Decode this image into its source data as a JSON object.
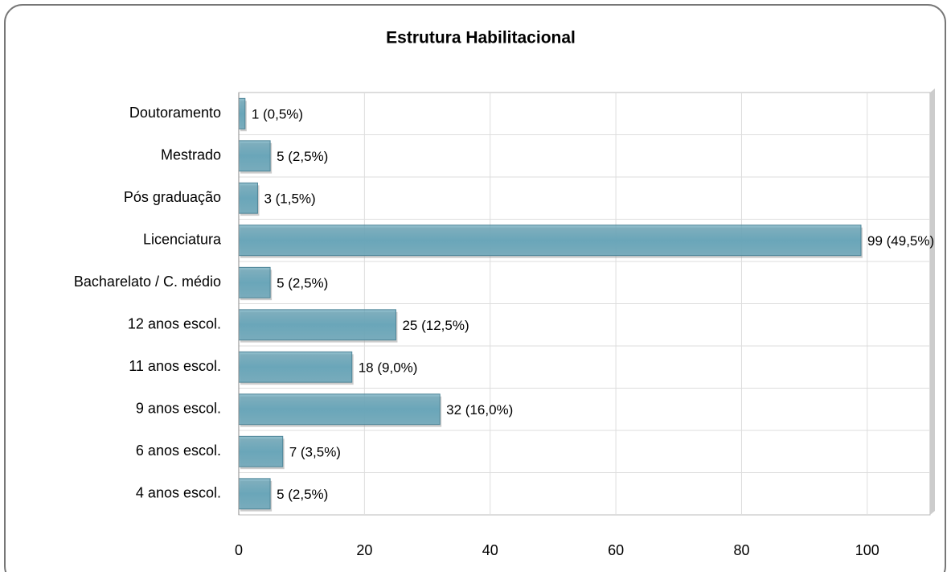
{
  "chart_data": {
    "type": "bar",
    "orientation": "horizontal",
    "title": "Estrutura Habilitacional",
    "categories": [
      "Doutoramento",
      "Mestrado",
      "Pós graduação",
      "Licenciatura",
      "Bacharelato / C. médio",
      "12 anos escol.",
      "11 anos escol.",
      "9 anos escol.",
      "6 anos escol.",
      "4 anos escol."
    ],
    "values": [
      1,
      5,
      3,
      99,
      5,
      25,
      18,
      32,
      7,
      5
    ],
    "value_labels": [
      "1 (0,5%)",
      "5 (2,5%)",
      "3 (1,5%)",
      "99 (49,5%)",
      "5 (2,5%)",
      "25 (12,5%)",
      "18 (9,0%)",
      "32 (16,0%)",
      "7 (3,5%)",
      "5 (2,5%)"
    ],
    "color": "#6aa6b9",
    "xlim": [
      0,
      110
    ],
    "xticks": [
      0,
      20,
      40,
      60,
      80,
      100
    ],
    "grid": true
  }
}
